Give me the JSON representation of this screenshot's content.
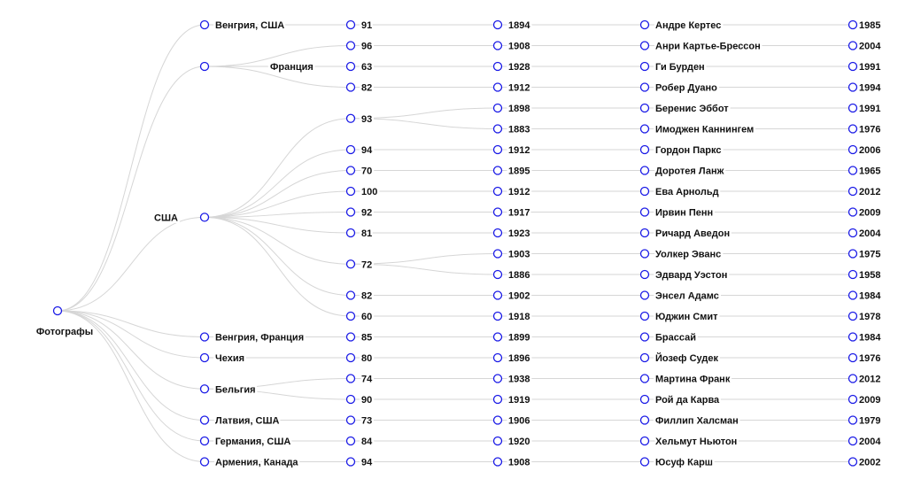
{
  "diagram": {
    "type": "tree",
    "root": {
      "label": "Фотографы",
      "children": [
        {
          "label": "Венгрия, США",
          "children": [
            {
              "label": "91",
              "children": [
                {
                  "label": "1894",
                  "children": [
                    {
                      "label": "Андре Кертес",
                      "children": [
                        {
                          "label": "1985"
                        }
                      ]
                    }
                  ]
                }
              ]
            }
          ]
        },
        {
          "label": "",
          "children": [
            {
              "label": "96",
              "children": [
                {
                  "label": "1908",
                  "children": [
                    {
                      "label": "Анри Картье-Брессон",
                      "children": [
                        {
                          "label": "2004"
                        }
                      ]
                    }
                  ]
                }
              ]
            },
            {
              "label": "63",
              "children": [
                {
                  "label": "1928",
                  "children": [
                    {
                      "label": "Ги Бурден",
                      "children": [
                        {
                          "label": "1991"
                        }
                      ]
                    }
                  ]
                }
              ]
            },
            {
              "label": "82",
              "children": [
                {
                  "label": "1912",
                  "children": [
                    {
                      "label": "Робер Дуано",
                      "children": [
                        {
                          "label": "1994"
                        }
                      ]
                    }
                  ]
                }
              ]
            }
          ]
        },
        {
          "label": "США",
          "children": [
            {
              "label": "93",
              "children": [
                {
                  "label": "1898",
                  "children": [
                    {
                      "label": "Беренис Эббот",
                      "children": [
                        {
                          "label": "1991"
                        }
                      ]
                    }
                  ]
                },
                {
                  "label": "1883",
                  "children": [
                    {
                      "label": "Имоджен Каннингем",
                      "children": [
                        {
                          "label": "1976"
                        }
                      ]
                    }
                  ]
                }
              ]
            },
            {
              "label": "94",
              "children": [
                {
                  "label": "1912",
                  "children": [
                    {
                      "label": "Гордон Паркс",
                      "children": [
                        {
                          "label": "2006"
                        }
                      ]
                    }
                  ]
                }
              ]
            },
            {
              "label": "70",
              "children": [
                {
                  "label": "1895",
                  "children": [
                    {
                      "label": "Доротея Ланж",
                      "children": [
                        {
                          "label": "1965"
                        }
                      ]
                    }
                  ]
                }
              ]
            },
            {
              "label": "100",
              "children": [
                {
                  "label": "1912",
                  "children": [
                    {
                      "label": "Ева Арнольд",
                      "children": [
                        {
                          "label": "2012"
                        }
                      ]
                    }
                  ]
                }
              ]
            },
            {
              "label": "92",
              "children": [
                {
                  "label": "1917",
                  "children": [
                    {
                      "label": "Ирвин Пенн",
                      "children": [
                        {
                          "label": "2009"
                        }
                      ]
                    }
                  ]
                }
              ]
            },
            {
              "label": "81",
              "children": [
                {
                  "label": "1923",
                  "children": [
                    {
                      "label": "Ричард Аведон",
                      "children": [
                        {
                          "label": "2004"
                        }
                      ]
                    }
                  ]
                }
              ]
            },
            {
              "label": "72",
              "children": [
                {
                  "label": "1903",
                  "children": [
                    {
                      "label": "Уолкер Эванс",
                      "children": [
                        {
                          "label": "1975"
                        }
                      ]
                    }
                  ]
                },
                {
                  "label": "1886",
                  "children": [
                    {
                      "label": "Эдвард Уэстон",
                      "children": [
                        {
                          "label": "1958"
                        }
                      ]
                    }
                  ]
                }
              ]
            },
            {
              "label": "82",
              "children": [
                {
                  "label": "1902",
                  "children": [
                    {
                      "label": "Энсел Адамс",
                      "children": [
                        {
                          "label": "1984"
                        }
                      ]
                    }
                  ]
                }
              ]
            },
            {
              "label": "60",
              "children": [
                {
                  "label": "1918",
                  "children": [
                    {
                      "label": "Юджин Смит",
                      "children": [
                        {
                          "label": "1978"
                        }
                      ]
                    }
                  ]
                }
              ]
            }
          ]
        },
        {
          "label": "Венгрия, Франция",
          "children": [
            {
              "label": "85",
              "children": [
                {
                  "label": "1899",
                  "children": [
                    {
                      "label": "Брассай",
                      "children": [
                        {
                          "label": "1984"
                        }
                      ]
                    }
                  ]
                }
              ]
            }
          ]
        },
        {
          "label": "Чехия",
          "children": [
            {
              "label": "80",
              "children": [
                {
                  "label": "1896",
                  "children": [
                    {
                      "label": "Йозеф Судек",
                      "children": [
                        {
                          "label": "1976"
                        }
                      ]
                    }
                  ]
                }
              ]
            }
          ]
        },
        {
          "label": "Бельгия",
          "children": [
            {
              "label": "74",
              "children": [
                {
                  "label": "1938",
                  "children": [
                    {
                      "label": "Мартина Франк",
                      "children": [
                        {
                          "label": "2012"
                        }
                      ]
                    }
                  ]
                }
              ]
            },
            {
              "label": "90",
              "children": [
                {
                  "label": "1919",
                  "children": [
                    {
                      "label": "Рой да Карва",
                      "children": [
                        {
                          "label": "2009"
                        }
                      ]
                    }
                  ]
                }
              ]
            }
          ]
        },
        {
          "label": "Латвия, США",
          "children": [
            {
              "label": "73",
              "children": [
                {
                  "label": "1906",
                  "children": [
                    {
                      "label": "Филлип Халсман",
                      "children": [
                        {
                          "label": "1979"
                        }
                      ]
                    }
                  ]
                }
              ]
            }
          ]
        },
        {
          "label": "Германия, США",
          "children": [
            {
              "label": "84",
              "children": [
                {
                  "label": "1920",
                  "children": [
                    {
                      "label": "Хельмут Ньютон",
                      "children": [
                        {
                          "label": "2004"
                        }
                      ]
                    }
                  ]
                }
              ]
            }
          ]
        },
        {
          "label": "Армения, Канада",
          "children": [
            {
              "label": "94",
              "children": [
                {
                  "label": "1908",
                  "children": [
                    {
                      "label": "Юсуф Карш",
                      "children": [
                        {
                          "label": "2002"
                        }
                      ]
                    }
                  ]
                }
              ]
            }
          ]
        }
      ]
    },
    "floating_labels": [
      {
        "label": "Франция",
        "attached_to": "root.children.1"
      }
    ],
    "colors": {
      "node_stroke": "#1a1ae6",
      "link": "#d6d6d6",
      "text": "#111111"
    }
  }
}
